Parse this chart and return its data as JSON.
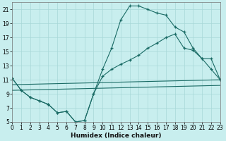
{
  "xlabel": "Humidex (Indice chaleur)",
  "bg_color": "#c8eeee",
  "grid_color": "#a8d8d8",
  "line_color": "#1a6b65",
  "xlim": [
    0,
    23
  ],
  "ylim": [
    5,
    22
  ],
  "yticks": [
    5,
    7,
    9,
    11,
    13,
    15,
    17,
    19,
    21
  ],
  "xticks": [
    0,
    1,
    2,
    3,
    4,
    5,
    6,
    7,
    8,
    9,
    10,
    11,
    12,
    13,
    14,
    15,
    16,
    17,
    18,
    19,
    20,
    21,
    22,
    23
  ],
  "curve1_x": [
    0,
    1,
    2,
    3,
    4,
    5,
    6,
    7,
    8,
    9,
    10,
    11,
    12,
    13,
    14,
    15,
    16,
    17,
    18,
    19,
    20,
    21,
    22,
    23
  ],
  "curve1_y": [
    11.2,
    9.5,
    8.5,
    8.0,
    7.5,
    6.3,
    6.5,
    5.0,
    5.2,
    9.0,
    12.5,
    15.5,
    19.5,
    21.5,
    21.5,
    21.0,
    20.5,
    20.2,
    18.5,
    17.8,
    15.5,
    14.0,
    12.5,
    11.0
  ],
  "curve2_x": [
    0,
    1,
    2,
    3,
    4,
    5,
    6,
    7,
    8,
    9,
    10,
    11,
    12,
    13,
    14,
    15,
    16,
    17,
    18,
    19,
    20,
    21,
    22,
    23
  ],
  "curve2_y": [
    11.2,
    9.5,
    8.5,
    8.0,
    7.5,
    6.3,
    6.5,
    5.0,
    5.2,
    9.0,
    11.5,
    12.5,
    13.2,
    13.8,
    14.5,
    15.5,
    16.2,
    17.0,
    17.5,
    15.5,
    15.2,
    14.0,
    14.0,
    11.0
  ],
  "line3_x": [
    0,
    23
  ],
  "line3_y": [
    10.3,
    11.0
  ],
  "line4_x": [
    0,
    23
  ],
  "line4_y": [
    9.5,
    10.2
  ]
}
